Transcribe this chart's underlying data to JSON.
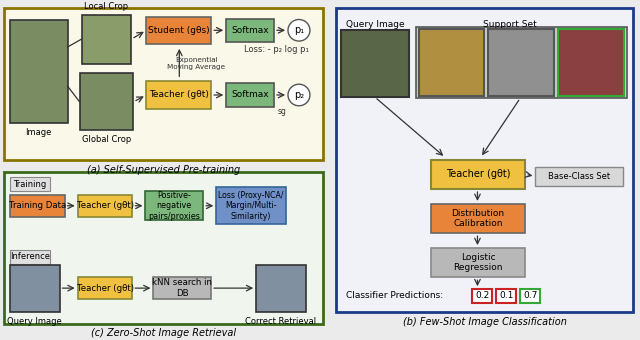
{
  "fig_width": 6.4,
  "fig_height": 3.4,
  "panel_a": {
    "border_color": "#8B7300",
    "bg_color": "#faf8e8",
    "title": "(a) Self-Supervised Pre-training",
    "student_color": "#E8843A",
    "teacher_color": "#F0C040",
    "softmax_color": "#7CB87C",
    "loss_text": "Loss: - p₂ log p₁"
  },
  "panel_b": {
    "border_color": "#1a3a8a",
    "bg_color": "#f0f2f8",
    "title": "(b) Few-Shot Image Classification",
    "teacher_color": "#F0C040",
    "dist_calib_color": "#E8843A",
    "logistic_color": "#b8b8b8",
    "base_class_color": "#d8d8d8",
    "pred_red": "#cc2222",
    "pred_green": "#33aa33",
    "predictions": [
      "0.2",
      "0.1",
      "0.7"
    ]
  },
  "panel_c": {
    "border_color": "#3a6a1a",
    "bg_color": "#f0f5ee",
    "title": "(c) Zero-Shot Image Retrieval",
    "training_data_color": "#E8843A",
    "teacher_color": "#F0C040",
    "pos_neg_color": "#7CB87C",
    "loss_color": "#7090C8",
    "knn_color": "#b8b8b8"
  }
}
